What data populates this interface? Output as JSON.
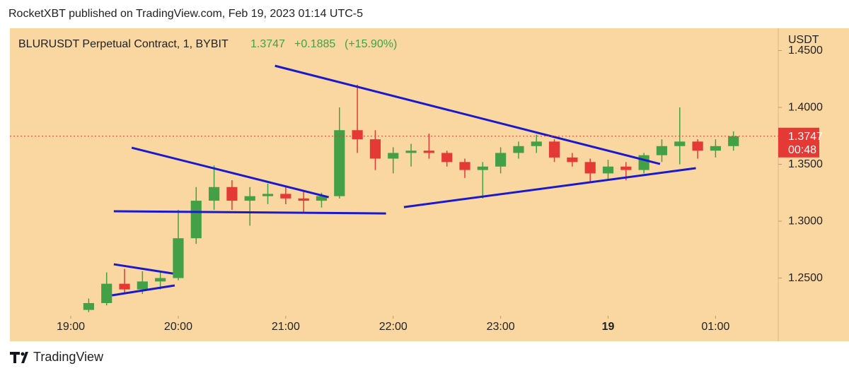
{
  "header": {
    "publisher": "RocketXBT published on TradingView.com, Feb 19, 2023 01:14 UTC-5",
    "brand": "TradingView"
  },
  "chart_data": {
    "type": "candlestick",
    "title": "BLURUSDT Perpetual Contract, 1, BYBIT",
    "last": "1.3747",
    "change": "+0.1885",
    "change_pct": "(+15.90%)",
    "y_axis_label": "USDT",
    "up_color": "#43a047",
    "down_color": "#e53935",
    "line_color": "#1a1acc",
    "background": "#fad7a0",
    "x": [
      "19:10",
      "19:20",
      "19:30",
      "19:40",
      "19:50",
      "20:00",
      "20:10",
      "20:20",
      "20:30",
      "20:40",
      "20:50",
      "21:00",
      "21:10",
      "21:20",
      "21:30",
      "21:40",
      "21:50",
      "22:00",
      "22:10",
      "22:20",
      "22:30",
      "22:40",
      "22:50",
      "23:00",
      "23:10",
      "23:20",
      "23:30",
      "23:40",
      "23:50",
      "00:00",
      "00:10",
      "00:20",
      "00:30",
      "00:40",
      "00:50",
      "01:00",
      "01:10"
    ],
    "open": [
      1.222,
      1.228,
      1.245,
      1.24,
      1.247,
      1.25,
      1.285,
      1.318,
      1.33,
      1.318,
      1.322,
      1.324,
      1.32,
      1.318,
      1.322,
      1.38,
      1.372,
      1.355,
      1.36,
      1.362,
      1.36,
      1.352,
      1.345,
      1.348,
      1.36,
      1.366,
      1.37,
      1.356,
      1.352,
      1.342,
      1.348,
      1.345,
      1.358,
      1.366,
      1.37,
      1.362,
      1.366
    ],
    "high": [
      1.232,
      1.255,
      1.258,
      1.256,
      1.256,
      1.31,
      1.33,
      1.349,
      1.336,
      1.33,
      1.333,
      1.33,
      1.326,
      1.325,
      1.4,
      1.42,
      1.38,
      1.365,
      1.368,
      1.377,
      1.362,
      1.355,
      1.352,
      1.365,
      1.37,
      1.376,
      1.372,
      1.36,
      1.355,
      1.354,
      1.352,
      1.36,
      1.372,
      1.4,
      1.372,
      1.372,
      1.379
    ],
    "low": [
      1.22,
      1.226,
      1.236,
      1.236,
      1.24,
      1.248,
      1.28,
      1.31,
      1.31,
      1.296,
      1.315,
      1.315,
      1.307,
      1.312,
      1.32,
      1.36,
      1.345,
      1.342,
      1.348,
      1.355,
      1.348,
      1.338,
      1.32,
      1.342,
      1.355,
      1.36,
      1.352,
      1.348,
      1.335,
      1.336,
      1.336,
      1.342,
      1.352,
      1.35,
      1.355,
      1.356,
      1.362
    ],
    "close": [
      1.228,
      1.245,
      1.24,
      1.247,
      1.25,
      1.285,
      1.318,
      1.33,
      1.318,
      1.322,
      1.324,
      1.32,
      1.318,
      1.322,
      1.38,
      1.372,
      1.355,
      1.36,
      1.362,
      1.36,
      1.352,
      1.345,
      1.348,
      1.36,
      1.366,
      1.37,
      1.356,
      1.352,
      1.342,
      1.348,
      1.345,
      1.358,
      1.366,
      1.37,
      1.362,
      1.366,
      1.3747
    ],
    "price_line": 1.3747,
    "countdown": "00:48",
    "trendlines": [
      {
        "x": [
          "19:24",
          "19:57"
        ],
        "y": [
          1.2621,
          1.254
        ]
      },
      {
        "x": [
          "19:23",
          "19:58"
        ],
        "y": [
          1.2348,
          1.2435
        ]
      },
      {
        "x": [
          "19:24",
          "21:56"
        ],
        "y": [
          1.3087,
          1.3068
        ]
      },
      {
        "x": [
          "19:34",
          "21:24"
        ],
        "y": [
          1.3646,
          1.3211
        ]
      },
      {
        "x": [
          "20:54",
          "00:29"
        ],
        "y": [
          1.4366,
          1.3503
        ]
      },
      {
        "x": [
          "22:06",
          "00:49"
        ],
        "y": [
          1.3124,
          1.3466
        ]
      }
    ],
    "xlim": [
      "18:26",
      "01:35"
    ],
    "ylim": [
      1.2199,
      1.4696
    ],
    "xticks": [
      "19:00",
      "20:00",
      "21:00",
      "22:00",
      "23:00",
      {
        "value": "00:00",
        "label": "19"
      },
      "01:00"
    ],
    "yticks": [
      {
        "value": 1.25,
        "label": "1.2500"
      },
      {
        "value": 1.3,
        "label": "1.3000"
      },
      {
        "value": 1.35,
        "label": "1.3500"
      },
      {
        "value": 1.4,
        "label": "1.4000"
      },
      {
        "value": 1.45,
        "label": "1.4500"
      }
    ],
    "grid": false
  }
}
